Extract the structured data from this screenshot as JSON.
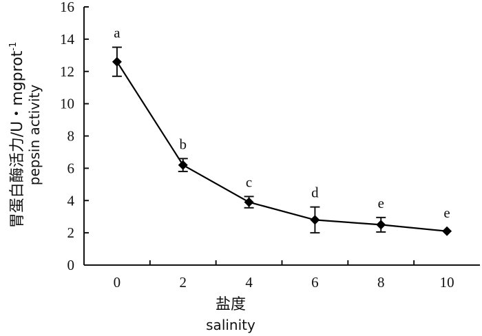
{
  "chart_data": {
    "type": "line",
    "xlabel_cn": "盐度",
    "xlabel_en": "salinity",
    "ylabel_cn": "胃蛋白酶活力/U・mgprot",
    "ylabel_sup": "-1",
    "ylabel_en": "pepsin activity",
    "x_ticks": [
      0,
      2,
      4,
      6,
      8,
      10
    ],
    "y_ticks": [
      0,
      2,
      4,
      6,
      8,
      10,
      12,
      14,
      16
    ],
    "xlim": [
      -1,
      11
    ],
    "ylim": [
      0,
      16
    ],
    "grid": false,
    "series": [
      {
        "x": [
          0,
          2,
          4,
          6,
          8,
          10
        ],
        "y": [
          12.6,
          6.2,
          3.9,
          2.8,
          2.5,
          2.1
        ],
        "error": [
          0.9,
          0.4,
          0.35,
          0.8,
          0.45,
          0.0
        ],
        "labels": [
          "a",
          "b",
          "c",
          "d",
          "e",
          "e"
        ],
        "color": "#000000",
        "marker": "diamond"
      }
    ]
  }
}
